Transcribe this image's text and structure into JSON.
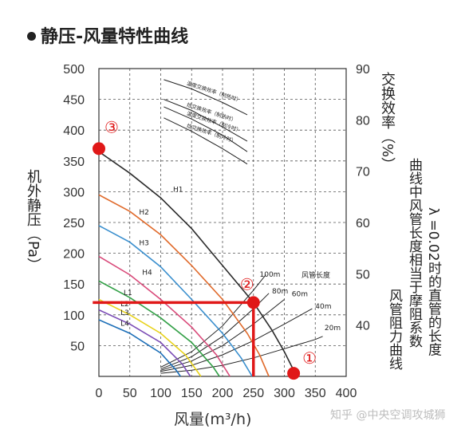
{
  "title": "静压-风量特性曲线",
  "watermark": "知乎 @中央空调攻城狮",
  "chart_data": {
    "type": "line",
    "xlabel": "风量(m³/h)",
    "ylabel": "机外静压（Pa）",
    "y2label": "交换效率（%）",
    "xlim": [
      0,
      400
    ],
    "ylim": [
      0,
      500
    ],
    "y2lim": [
      30,
      90
    ],
    "xticks": [
      "0",
      "50",
      "100",
      "150",
      "200",
      "250",
      "300",
      "350",
      "400"
    ],
    "yticks": [
      "50",
      "100",
      "150",
      "200",
      "250",
      "300",
      "350",
      "400",
      "450",
      "500"
    ],
    "y2ticks": [
      "40",
      "50",
      "60",
      "70",
      "80",
      "90"
    ],
    "y2label_suffix": "（%）",
    "fan_curves": [
      {
        "name": "H1",
        "color": "#2b2b2b",
        "label_at": [
          120,
          300
        ],
        "points": [
          [
            0,
            365
          ],
          [
            50,
            330
          ],
          [
            100,
            290
          ],
          [
            150,
            240
          ],
          [
            200,
            180
          ],
          [
            250,
            120
          ],
          [
            280,
            75
          ],
          [
            300,
            40
          ],
          [
            320,
            0
          ]
        ]
      },
      {
        "name": "H2",
        "color": "#e06a2b",
        "label_at": [
          65,
          263
        ],
        "points": [
          [
            0,
            295
          ],
          [
            50,
            268
          ],
          [
            100,
            230
          ],
          [
            150,
            180
          ],
          [
            200,
            125
          ],
          [
            240,
            70
          ],
          [
            260,
            35
          ],
          [
            275,
            0
          ]
        ]
      },
      {
        "name": "H3",
        "color": "#3a8fce",
        "label_at": [
          65,
          213
        ],
        "points": [
          [
            0,
            245
          ],
          [
            50,
            218
          ],
          [
            100,
            178
          ],
          [
            150,
            125
          ],
          [
            200,
            70
          ],
          [
            230,
            30
          ],
          [
            248,
            0
          ]
        ]
      },
      {
        "name": "H4",
        "color": "#d94a7a",
        "label_at": [
          70,
          165
        ],
        "points": [
          [
            0,
            195
          ],
          [
            50,
            165
          ],
          [
            100,
            125
          ],
          [
            150,
            80
          ],
          [
            190,
            35
          ],
          [
            212,
            0
          ]
        ]
      },
      {
        "name": "L1",
        "color": "#33a047",
        "label_at": [
          40,
          132
        ],
        "points": [
          [
            0,
            155
          ],
          [
            50,
            128
          ],
          [
            100,
            95
          ],
          [
            150,
            55
          ],
          [
            185,
            15
          ],
          [
            195,
            0
          ]
        ]
      },
      {
        "name": "L2",
        "color": "#e8d21a",
        "label_at": [
          35,
          114
        ],
        "points": [
          [
            0,
            125
          ],
          [
            50,
            100
          ],
          [
            100,
            70
          ],
          [
            140,
            35
          ],
          [
            165,
            0
          ]
        ]
      },
      {
        "name": "L3",
        "color": "#7a4bb5",
        "label_at": [
          35,
          100
        ],
        "points": [
          [
            0,
            108
          ],
          [
            50,
            85
          ],
          [
            100,
            55
          ],
          [
            135,
            20
          ],
          [
            148,
            0
          ]
        ]
      },
      {
        "name": "L4",
        "color": "#1d6fb8",
        "label_at": [
          35,
          82
        ],
        "points": [
          [
            0,
            92
          ],
          [
            50,
            70
          ],
          [
            100,
            38
          ],
          [
            125,
            10
          ],
          [
            132,
            0
          ]
        ]
      }
    ],
    "duct_curves": [
      {
        "name": "100m",
        "label_at": [
          260,
          162
        ],
        "points": [
          [
            100,
            15
          ],
          [
            150,
            40
          ],
          [
            200,
            82
          ],
          [
            250,
            140
          ],
          [
            270,
            165
          ]
        ]
      },
      {
        "name": "80m",
        "label_at": [
          280,
          135
        ],
        "points": [
          [
            100,
            12
          ],
          [
            150,
            32
          ],
          [
            200,
            65
          ],
          [
            250,
            110
          ],
          [
            275,
            135
          ]
        ]
      },
      {
        "name": "60m",
        "label_at": [
          312,
          130
        ],
        "points": [
          [
            100,
            10
          ],
          [
            150,
            25
          ],
          [
            200,
            50
          ],
          [
            250,
            85
          ],
          [
            300,
            125
          ]
        ]
      },
      {
        "name": "40m",
        "label_at": [
          350,
          110
        ],
        "points": [
          [
            100,
            8
          ],
          [
            150,
            18
          ],
          [
            200,
            35
          ],
          [
            250,
            58
          ],
          [
            300,
            85
          ],
          [
            345,
            110
          ]
        ]
      },
      {
        "name": "20m",
        "label_at": [
          365,
          75
        ],
        "points": [
          [
            100,
            5
          ],
          [
            150,
            10
          ],
          [
            200,
            18
          ],
          [
            250,
            30
          ],
          [
            300,
            45
          ],
          [
            350,
            60
          ],
          [
            362,
            65
          ]
        ]
      }
    ],
    "duct_legend": "风管长度",
    "efficiency_curves": [
      {
        "name": "温度交换效率（制热时）",
        "points": [
          [
            105,
            482
          ],
          [
            150,
            467
          ],
          [
            200,
            445
          ],
          [
            240,
            425
          ]
        ]
      },
      {
        "name": "焓交换效率（制热时）",
        "points": [
          [
            105,
            450
          ],
          [
            150,
            432
          ],
          [
            200,
            405
          ],
          [
            240,
            382
          ]
        ]
      },
      {
        "name": "温度交换效率（制冷时）",
        "points": [
          [
            105,
            438
          ],
          [
            150,
            418
          ],
          [
            200,
            392
          ],
          [
            240,
            365
          ]
        ]
      },
      {
        "name": "焓交换效率（制冷时）",
        "points": [
          [
            105,
            420
          ],
          [
            150,
            398
          ],
          [
            200,
            370
          ],
          [
            240,
            345
          ]
        ]
      }
    ],
    "operating_point": {
      "x": 250,
      "y": 120,
      "label": "②"
    },
    "markers": [
      {
        "label": "①",
        "x": 315,
        "y": 5
      },
      {
        "label": "②",
        "x": 250,
        "y": 120
      },
      {
        "label": "③",
        "x": 0,
        "y": 370
      }
    ],
    "note_lines": [
      "风管阻力曲线",
      "曲线中风管长度相当于摩阻系数",
      "λ =0.02时的直管的长度"
    ],
    "grid": true
  }
}
